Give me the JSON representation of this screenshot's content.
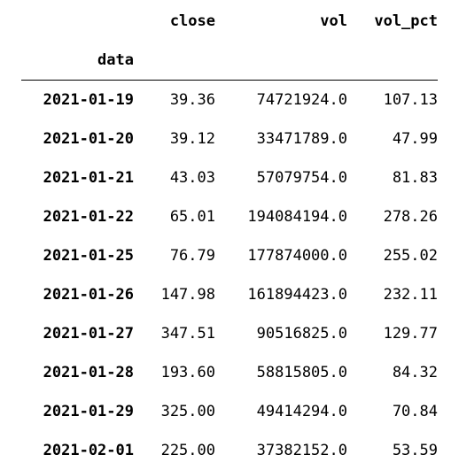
{
  "table": {
    "index_name": "data",
    "columns": [
      "close",
      "vol",
      "vol_pct"
    ],
    "rows": [
      {
        "index": "2021-01-19",
        "close": "39.36",
        "vol": "74721924.0",
        "vol_pct": "107.13"
      },
      {
        "index": "2021-01-20",
        "close": "39.12",
        "vol": "33471789.0",
        "vol_pct": "47.99"
      },
      {
        "index": "2021-01-21",
        "close": "43.03",
        "vol": "57079754.0",
        "vol_pct": "81.83"
      },
      {
        "index": "2021-01-22",
        "close": "65.01",
        "vol": "194084194.0",
        "vol_pct": "278.26"
      },
      {
        "index": "2021-01-25",
        "close": "76.79",
        "vol": "177874000.0",
        "vol_pct": "255.02"
      },
      {
        "index": "2021-01-26",
        "close": "147.98",
        "vol": "161894423.0",
        "vol_pct": "232.11"
      },
      {
        "index": "2021-01-27",
        "close": "347.51",
        "vol": "90516825.0",
        "vol_pct": "129.77"
      },
      {
        "index": "2021-01-28",
        "close": "193.60",
        "vol": "58815805.0",
        "vol_pct": "84.32"
      },
      {
        "index": "2021-01-29",
        "close": "325.00",
        "vol": "49414294.0",
        "vol_pct": "70.84"
      },
      {
        "index": "2021-02-01",
        "close": "225.00",
        "vol": "37382152.0",
        "vol_pct": "53.59"
      }
    ]
  }
}
